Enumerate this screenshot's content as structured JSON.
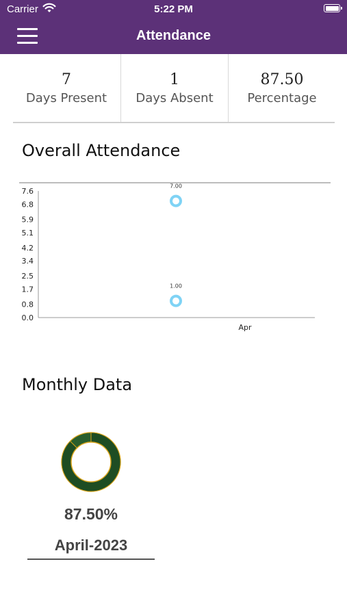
{
  "status_bar": {
    "carrier": "Carrier",
    "time": "5:22 PM"
  },
  "navbar": {
    "title": "Attendance"
  },
  "stats": [
    {
      "value": "7",
      "label": "Days Present"
    },
    {
      "value": "1",
      "label": "Days Absent"
    },
    {
      "value": "87.50",
      "label": "Percentage"
    }
  ],
  "overall": {
    "title": "Overall Attendance"
  },
  "chart_data": {
    "type": "scatter",
    "categories": [
      "Apr"
    ],
    "y_ticks": [
      "0.0",
      "0.8",
      "1.7",
      "2.5",
      "3.4",
      "4.2",
      "5.1",
      "5.9",
      "6.8",
      "7.6"
    ],
    "ylim": [
      0,
      7.6
    ],
    "series": [
      {
        "values": [
          7.0
        ],
        "label": "7.00"
      },
      {
        "values": [
          1.0
        ],
        "label": "1.00"
      }
    ],
    "point_color": "#7fd3f5",
    "grid": false,
    "legend": false
  },
  "monthly": {
    "title": "Monthly Data",
    "items": [
      {
        "percentage": "87.50%",
        "month": "April-2023",
        "fraction": 0.875,
        "present_color": "#1e4d23",
        "absent_color": "#2a5e2c",
        "outline_color": "#d9a41a"
      }
    ]
  },
  "colors": {
    "header": "#5c3178"
  }
}
